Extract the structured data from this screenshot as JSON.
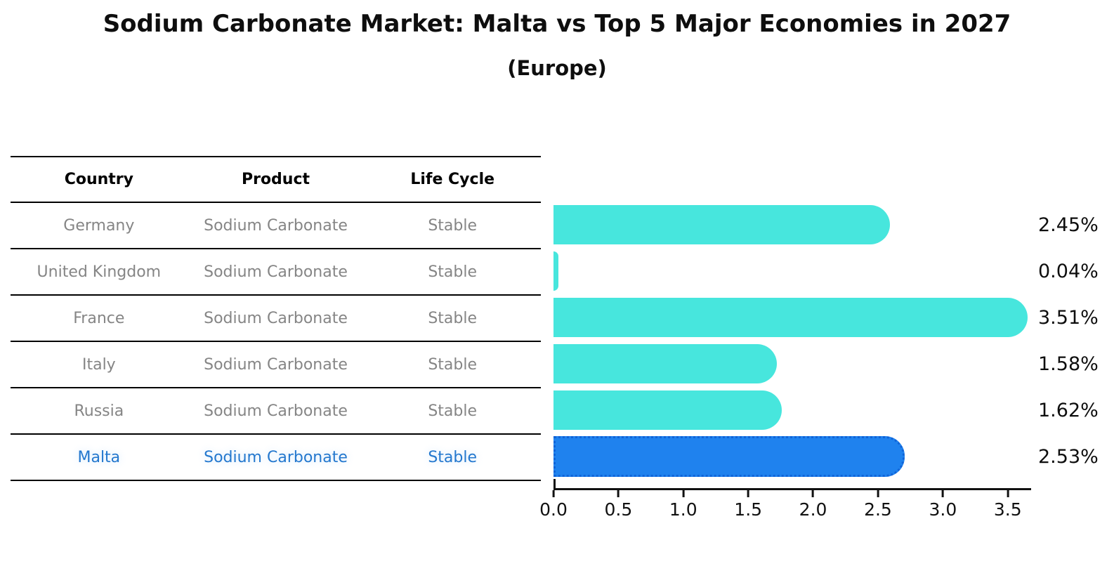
{
  "title": "Sodium Carbonate Market: Malta vs Top 5 Major Economies in 2027",
  "subtitle": "(Europe)",
  "table": {
    "headers": {
      "country": "Country",
      "product": "Product",
      "life_cycle": "Life Cycle"
    },
    "rows": [
      {
        "country": "Germany",
        "product": "Sodium Carbonate",
        "life_cycle": "Stable"
      },
      {
        "country": "United Kingdom",
        "product": "Sodium Carbonate",
        "life_cycle": "Stable"
      },
      {
        "country": "France",
        "product": "Sodium Carbonate",
        "life_cycle": "Stable"
      },
      {
        "country": "Italy",
        "product": "Sodium Carbonate",
        "life_cycle": "Stable"
      },
      {
        "country": "Russia",
        "product": "Sodium Carbonate",
        "life_cycle": "Stable"
      },
      {
        "country": "Malta",
        "product": "Sodium Carbonate",
        "life_cycle": "Stable"
      }
    ]
  },
  "chart_data": {
    "type": "bar",
    "orientation": "horizontal",
    "title": "Sodium Carbonate Market: Malta vs Top 5 Major Economies in 2027",
    "subtitle": "(Europe)",
    "categories": [
      "Germany",
      "United Kingdom",
      "France",
      "Italy",
      "Russia",
      "Malta"
    ],
    "values": [
      2.45,
      0.04,
      3.51,
      1.58,
      1.62,
      2.53
    ],
    "value_labels": [
      "2.45%",
      "0.04%",
      "3.51%",
      "1.58%",
      "1.62%",
      "2.53%"
    ],
    "x_ticks": [
      "0.0",
      "0.5",
      "1.0",
      "1.5",
      "2.0",
      "2.5",
      "3.0",
      "3.5"
    ],
    "xlim": [
      0,
      3.68
    ],
    "grid": false,
    "legend": "none",
    "value_label_position": "right",
    "bar_color": "#47E6DD",
    "highlight_bar_color": "#1F82EE",
    "highlight_border_color": "#1064D8",
    "highlight_index": 5,
    "highlight_category": "Malta"
  },
  "colors": {
    "background": "#FFFFFF",
    "bar": "#47E6DD",
    "highlight_bar": "#1F82EE",
    "highlight_border": "#1064D8",
    "highlight_text": "#2478CE",
    "table_text": "#858585",
    "header_text": "#000000",
    "axis": "#111111"
  }
}
